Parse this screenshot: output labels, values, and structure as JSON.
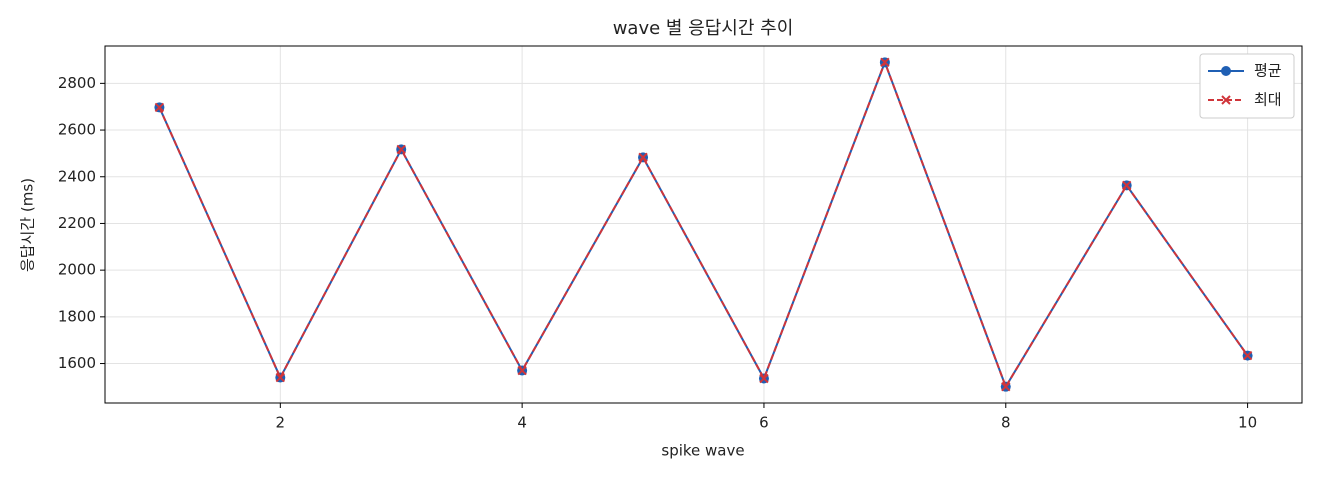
{
  "chart_data": {
    "type": "line",
    "title": "wave 별 응답시간 추이",
    "x_label": "spike wave",
    "y_label": "응답시간 (ms)",
    "x": [
      1,
      2,
      3,
      4,
      5,
      6,
      7,
      8,
      9,
      10
    ],
    "series": [
      {
        "name": "평균",
        "color": "#1f5fb4",
        "values": [
          2697,
          1540,
          2517,
          1570,
          2483,
          1536,
          2890,
          1501,
          2363,
          1634
        ]
      },
      {
        "name": "최대",
        "color": "#d0353a",
        "values": [
          2697,
          1540,
          2517,
          1570,
          2483,
          1536,
          2890,
          1501,
          2363,
          1634
        ]
      }
    ],
    "xlim": [
      0.55,
      10.45
    ],
    "ylim": [
      1431,
      2960
    ],
    "xticks": [
      2,
      4,
      6,
      8,
      10
    ],
    "yticks": [
      1600,
      1800,
      2000,
      2200,
      2400,
      2600,
      2800
    ],
    "grid": true,
    "legend": "upper right"
  }
}
